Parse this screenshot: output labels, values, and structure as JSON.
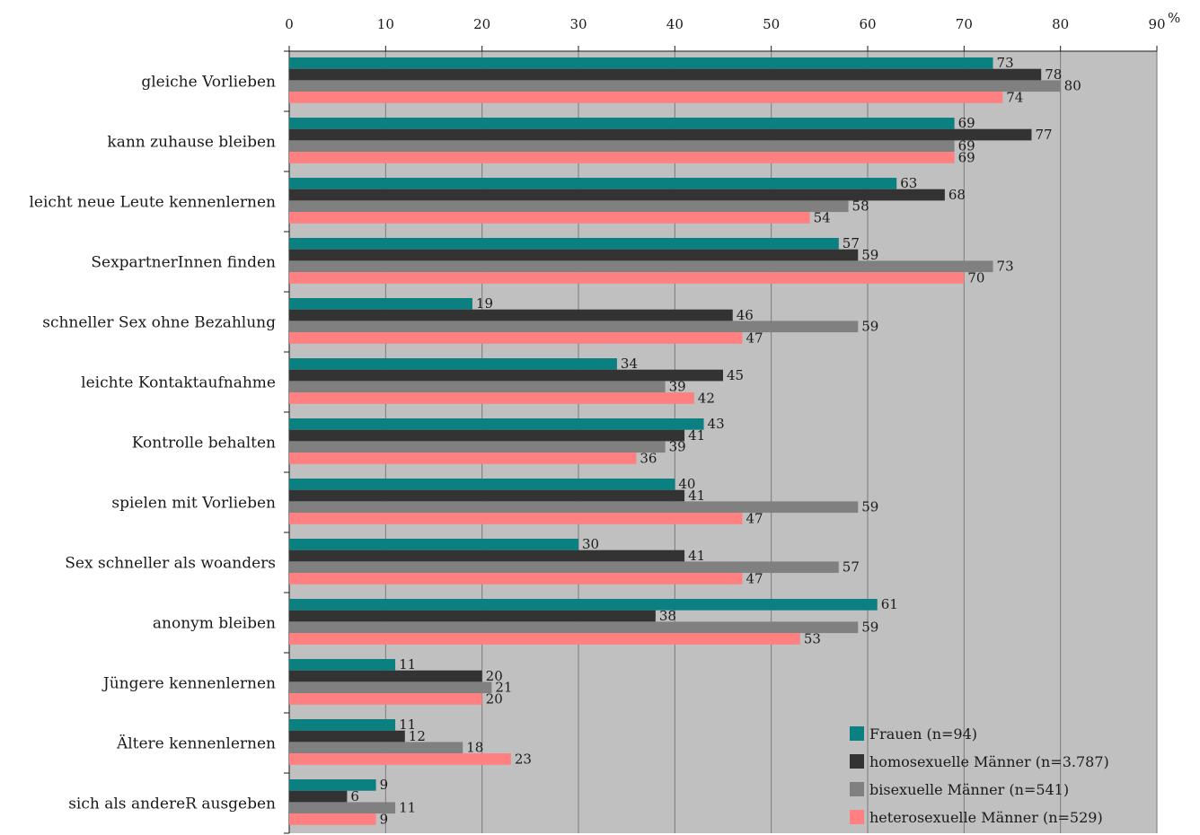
{
  "chart_data": {
    "type": "bar",
    "orientation": "horizontal",
    "unit": "%",
    "xlim": [
      0,
      90
    ],
    "x_ticks": [
      "0",
      "10",
      "20",
      "30",
      "40",
      "50",
      "60",
      "70",
      "80",
      "90"
    ],
    "grid": true,
    "plot_background": "#c0c0c0",
    "legend_position": "bottom-right",
    "categories": [
      "gleiche Vorlieben",
      "kann zuhause bleiben",
      "leicht neue Leute kennenlernen",
      "SexpartnerInnen finden",
      "schneller Sex ohne Bezahlung",
      "leichte Kontaktaufnahme",
      "Kontrolle behalten",
      "spielen mit Vorlieben",
      "Sex schneller als woanders",
      "anonym bleiben",
      "Jüngere kennenlernen",
      "Ältere kennenlernen",
      "sich als andereR ausgeben"
    ],
    "series": [
      {
        "name": "Frauen (n=94)",
        "color": "#0b8080",
        "values": [
          73,
          69,
          63,
          57,
          19,
          34,
          43,
          40,
          30,
          61,
          11,
          11,
          9
        ]
      },
      {
        "name": "homosexuelle Männer (n=3.787)",
        "color": "#333333",
        "values": [
          78,
          77,
          68,
          59,
          46,
          45,
          41,
          41,
          41,
          38,
          20,
          12,
          6
        ]
      },
      {
        "name": "bisexuelle Männer (n=541)",
        "color": "#808080",
        "values": [
          80,
          69,
          58,
          73,
          59,
          39,
          39,
          59,
          57,
          59,
          21,
          18,
          11
        ]
      },
      {
        "name": "heterosexuelle Männer (n=529)",
        "color": "#ff8080",
        "values": [
          74,
          69,
          54,
          70,
          47,
          42,
          36,
          47,
          47,
          53,
          20,
          23,
          9
        ]
      }
    ]
  }
}
